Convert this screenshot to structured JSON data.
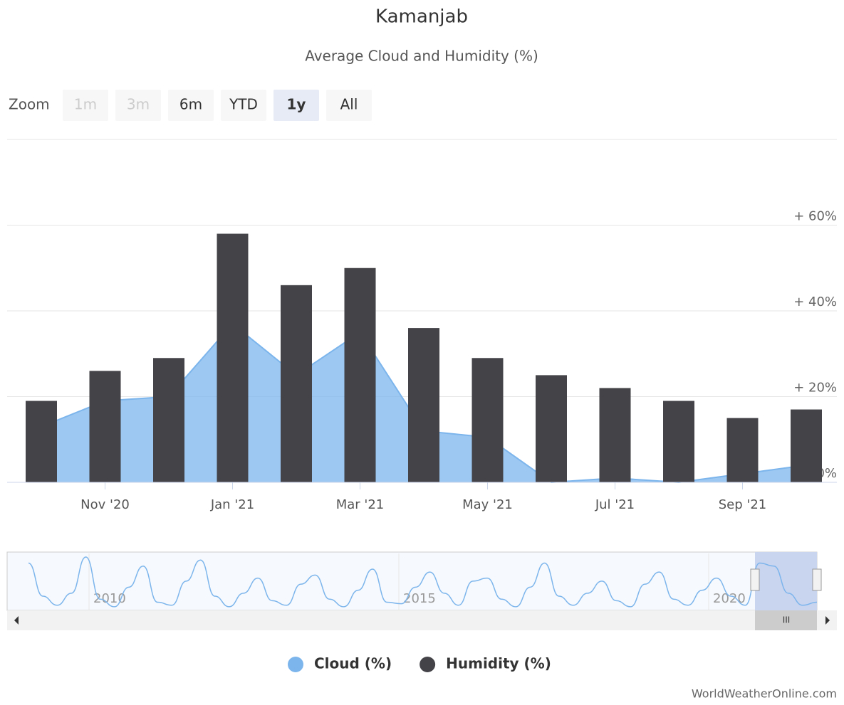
{
  "chart_data": {
    "type": "bar",
    "title": "Kamanjab",
    "subtitle": "Average Cloud and Humidity (%)",
    "zoom": {
      "label": "Zoom",
      "buttons": [
        "1m",
        "3m",
        "6m",
        "YTD",
        "1y",
        "All"
      ],
      "disabled": [
        0,
        1
      ],
      "selected": 4
    },
    "categories": [
      null,
      "Nov '20",
      null,
      "Jan '21",
      null,
      "Mar '21",
      null,
      "May '21",
      null,
      "Jul '21",
      null,
      "Sep '21",
      null
    ],
    "series": [
      {
        "name": "Cloud (%)",
        "type": "area",
        "color": "#7cb5ec",
        "values": [
          13,
          19,
          20,
          37,
          25,
          35,
          12,
          10.5,
          0,
          1,
          0,
          2,
          4
        ]
      },
      {
        "name": "Humidity (%)",
        "type": "bar",
        "color": "#434348",
        "values": [
          19,
          26,
          29,
          58,
          46,
          50,
          36,
          29,
          25,
          22,
          19,
          15,
          17
        ]
      }
    ],
    "ylim": [
      0,
      80
    ],
    "yticks": [
      {
        "value": 0,
        "label": "0%"
      },
      {
        "value": 20,
        "label": "+ 20%"
      },
      {
        "value": 40,
        "label": "+ 40%"
      },
      {
        "value": 60,
        "label": "+ 60%"
      }
    ],
    "grid": true,
    "legend": "bottom",
    "navigator": {
      "labels": [
        "2010",
        "2015",
        "2020"
      ],
      "values": [
        30,
        8,
        2,
        10,
        34,
        6,
        1,
        14,
        28,
        4,
        2,
        18,
        32,
        8,
        1,
        10,
        20,
        5,
        2,
        16,
        22,
        6,
        1,
        12,
        26,
        4,
        3,
        14,
        24,
        10,
        2,
        18,
        20,
        6,
        1,
        14,
        30,
        8,
        2,
        10,
        18,
        5,
        1,
        16,
        24,
        6,
        2,
        12,
        20,
        8,
        2,
        30,
        28,
        10,
        2,
        4
      ]
    },
    "credit": "WorldWeatherOnline.com"
  }
}
